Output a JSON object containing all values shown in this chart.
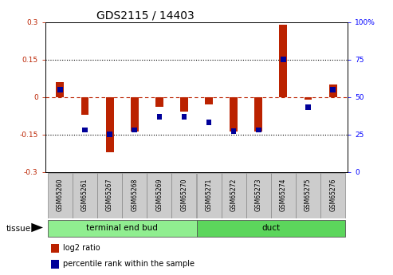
{
  "title": "GDS2115 / 14403",
  "samples": [
    "GSM65260",
    "GSM65261",
    "GSM65267",
    "GSM65268",
    "GSM65269",
    "GSM65270",
    "GSM65271",
    "GSM65272",
    "GSM65273",
    "GSM65274",
    "GSM65275",
    "GSM65276"
  ],
  "log2_ratio": [
    0.06,
    -0.07,
    -0.22,
    -0.14,
    -0.04,
    -0.06,
    -0.03,
    -0.14,
    -0.14,
    0.29,
    -0.01,
    0.05
  ],
  "percentile": [
    55,
    28,
    25,
    28,
    37,
    37,
    33,
    27,
    28,
    75,
    43,
    55
  ],
  "tissue_groups": [
    {
      "label": "terminal end bud",
      "start": 0,
      "end": 6,
      "color": "#90EE90"
    },
    {
      "label": "duct",
      "start": 6,
      "end": 12,
      "color": "#5CD65C"
    }
  ],
  "red_color": "#BB2200",
  "blue_color": "#000099",
  "ylim_left": [
    -0.3,
    0.3
  ],
  "ylim_right": [
    0,
    100
  ],
  "yticks_left": [
    -0.3,
    -0.15,
    0,
    0.15,
    0.3
  ],
  "yticks_right": [
    0,
    25,
    50,
    75,
    100
  ],
  "background_plot": "#FFFFFF",
  "background_fig": "#FFFFFF",
  "title_fontsize": 10,
  "tick_fontsize": 6.5,
  "sample_fontsize": 5.5,
  "tissue_fontsize": 7.5,
  "legend_fontsize": 7
}
